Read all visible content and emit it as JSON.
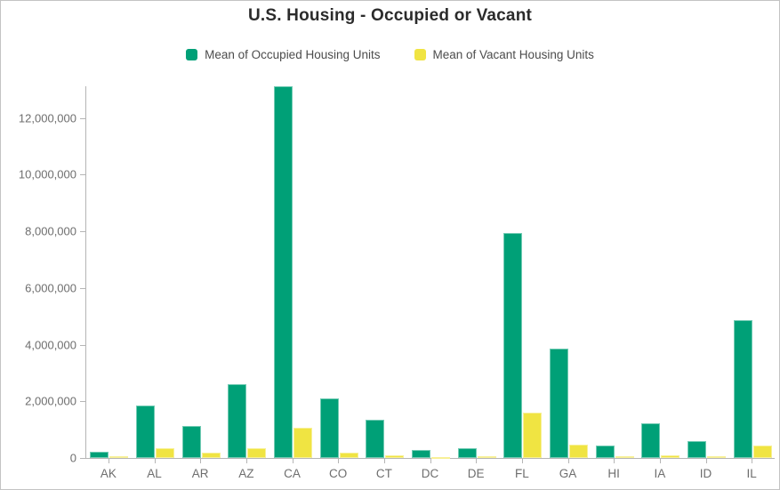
{
  "window": {
    "background": "#ffffff",
    "border_color": "#c3c3c3"
  },
  "chart_data": {
    "type": "bar",
    "title": "U.S. Housing - Occupied or Vacant",
    "categories": [
      "AK",
      "AL",
      "AR",
      "AZ",
      "CA",
      "CO",
      "CT",
      "DC",
      "DE",
      "FL",
      "GA",
      "HI",
      "IA",
      "ID",
      "IL"
    ],
    "series": [
      {
        "name": "Mean of Occupied Housing Units",
        "color": "#00A077",
        "values": [
          235000,
          1860000,
          1130000,
          2610000,
          13120000,
          2100000,
          1350000,
          270000,
          340000,
          7940000,
          3860000,
          430000,
          1230000,
          610000,
          4860000
        ]
      },
      {
        "name": "Mean of Vacant Housing Units",
        "color": "#F0E442",
        "values": [
          60000,
          350000,
          190000,
          350000,
          1070000,
          185000,
          100000,
          40000,
          70000,
          1600000,
          455000,
          55000,
          95000,
          60000,
          450000
        ]
      }
    ],
    "xlabel": "",
    "ylabel": "",
    "ylim": [
      0,
      13200000
    ],
    "y_ticks": [
      0,
      2000000,
      4000000,
      6000000,
      8000000,
      10000000,
      12000000
    ],
    "grid": false,
    "legend_position": "top",
    "axis_color": "#b5b5b5",
    "tick_label_color": "#6e6e6e",
    "title_color": "#2b2b2b",
    "legend_text_color": "#4c4c4c"
  }
}
